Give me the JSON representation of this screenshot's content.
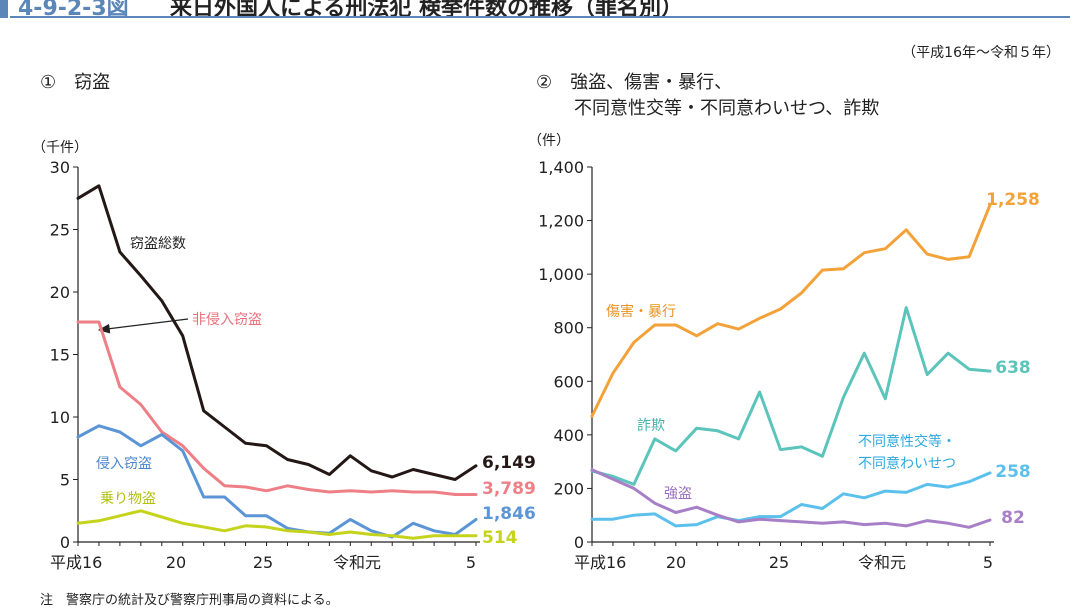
{
  "header": {
    "figure_code": "4-9-2-3図",
    "title": "来日外国人による刑法犯 検挙件数の推移（罪名別）",
    "period": "（平成16年～令和５年）"
  },
  "note": "注　警察庁の統計及び警察庁刑事局の資料による。",
  "chart_data": [
    {
      "type": "line",
      "panel_label": "①　窃盗",
      "ylabel": "（千件）",
      "ylim": [
        0,
        30
      ],
      "yticks": [
        "0",
        "5",
        "10",
        "15",
        "20",
        "25",
        "30"
      ],
      "xticks": [
        "平成16",
        "20",
        "25",
        "令和元",
        "5"
      ],
      "x": [
        16,
        17,
        18,
        19,
        20,
        21,
        22,
        23,
        24,
        25,
        26,
        27,
        28,
        29,
        30,
        31,
        32,
        33,
        34,
        35
      ],
      "series": [
        {
          "name": "窃盗総数",
          "color": "#231815",
          "values": [
            27.5,
            28.5,
            23.2,
            21.3,
            19.3,
            16.5,
            10.5,
            9.2,
            7.9,
            7.7,
            6.6,
            6.2,
            5.4,
            6.9,
            5.7,
            5.2,
            5.8,
            5.4,
            5.0,
            6.1
          ],
          "end_label": "6,149"
        },
        {
          "name": "非侵入窃盗",
          "color": "#ee7f86",
          "values": [
            17.6,
            17.6,
            12.4,
            11.0,
            8.8,
            7.7,
            5.9,
            4.5,
            4.4,
            4.1,
            4.5,
            4.2,
            4.0,
            4.1,
            4.0,
            4.1,
            4.0,
            4.0,
            3.8,
            3.8
          ],
          "end_label": "3,789"
        },
        {
          "name": "侵入窃盗",
          "color": "#5b95d6",
          "values": [
            8.4,
            9.3,
            8.8,
            7.7,
            8.6,
            7.3,
            3.6,
            3.6,
            2.1,
            2.1,
            1.1,
            0.8,
            0.7,
            1.8,
            0.9,
            0.4,
            1.5,
            0.9,
            0.6,
            1.8
          ],
          "end_label": "1,846"
        },
        {
          "name": "乗り物盗",
          "color": "#c5d31c",
          "values": [
            1.5,
            1.7,
            2.1,
            2.5,
            2.0,
            1.5,
            1.2,
            0.9,
            1.3,
            1.2,
            0.9,
            0.8,
            0.6,
            0.8,
            0.6,
            0.5,
            0.3,
            0.5,
            0.5,
            0.5
          ],
          "end_label": "514"
        }
      ],
      "annotations": [
        "窃盗総数",
        "非侵入窃盗",
        "侵入窃盗",
        "乗り物盗"
      ]
    },
    {
      "type": "line",
      "panel_label_1": "②　強盗、傷害・暴行、",
      "panel_label_2": "不同意性交等・不同意わいせつ、詐欺",
      "ylabel": "（件）",
      "ylim": [
        0,
        1400
      ],
      "yticks": [
        "0",
        "200",
        "400",
        "600",
        "800",
        "1,000",
        "1,200",
        "1,400"
      ],
      "xticks": [
        "平成16",
        "20",
        "25",
        "令和元",
        "5"
      ],
      "x": [
        16,
        17,
        18,
        19,
        20,
        21,
        22,
        23,
        24,
        25,
        26,
        27,
        28,
        29,
        30,
        31,
        32,
        33,
        34,
        35
      ],
      "series": [
        {
          "name": "傷害・暴行",
          "color": "#f3a23a",
          "values": [
            470,
            630,
            745,
            810,
            810,
            770,
            815,
            795,
            835,
            870,
            930,
            1015,
            1020,
            1080,
            1095,
            1165,
            1075,
            1055,
            1065,
            1258
          ],
          "end_label": "1,258"
        },
        {
          "name": "詐欺",
          "color": "#5bc4bb",
          "values": [
            265,
            245,
            215,
            385,
            340,
            425,
            415,
            385,
            560,
            345,
            355,
            320,
            540,
            705,
            535,
            875,
            625,
            705,
            645,
            638
          ],
          "end_label": "638"
        },
        {
          "name": "不同意性交等・不同意わいせつ",
          "color": "#5bc0ec",
          "values": [
            85,
            85,
            100,
            105,
            60,
            65,
            95,
            80,
            95,
            95,
            140,
            125,
            180,
            165,
            190,
            185,
            215,
            205,
            225,
            258
          ],
          "end_label": "258"
        },
        {
          "name": "強盗",
          "color": "#a77fc7",
          "values": [
            270,
            235,
            200,
            145,
            110,
            130,
            100,
            75,
            85,
            80,
            75,
            70,
            75,
            65,
            70,
            60,
            80,
            70,
            55,
            82
          ],
          "end_label": "82"
        }
      ],
      "annotations": [
        "傷害・暴行",
        "詐欺",
        "不同意性交等・",
        "不同意わいせつ",
        "強盗"
      ]
    }
  ]
}
